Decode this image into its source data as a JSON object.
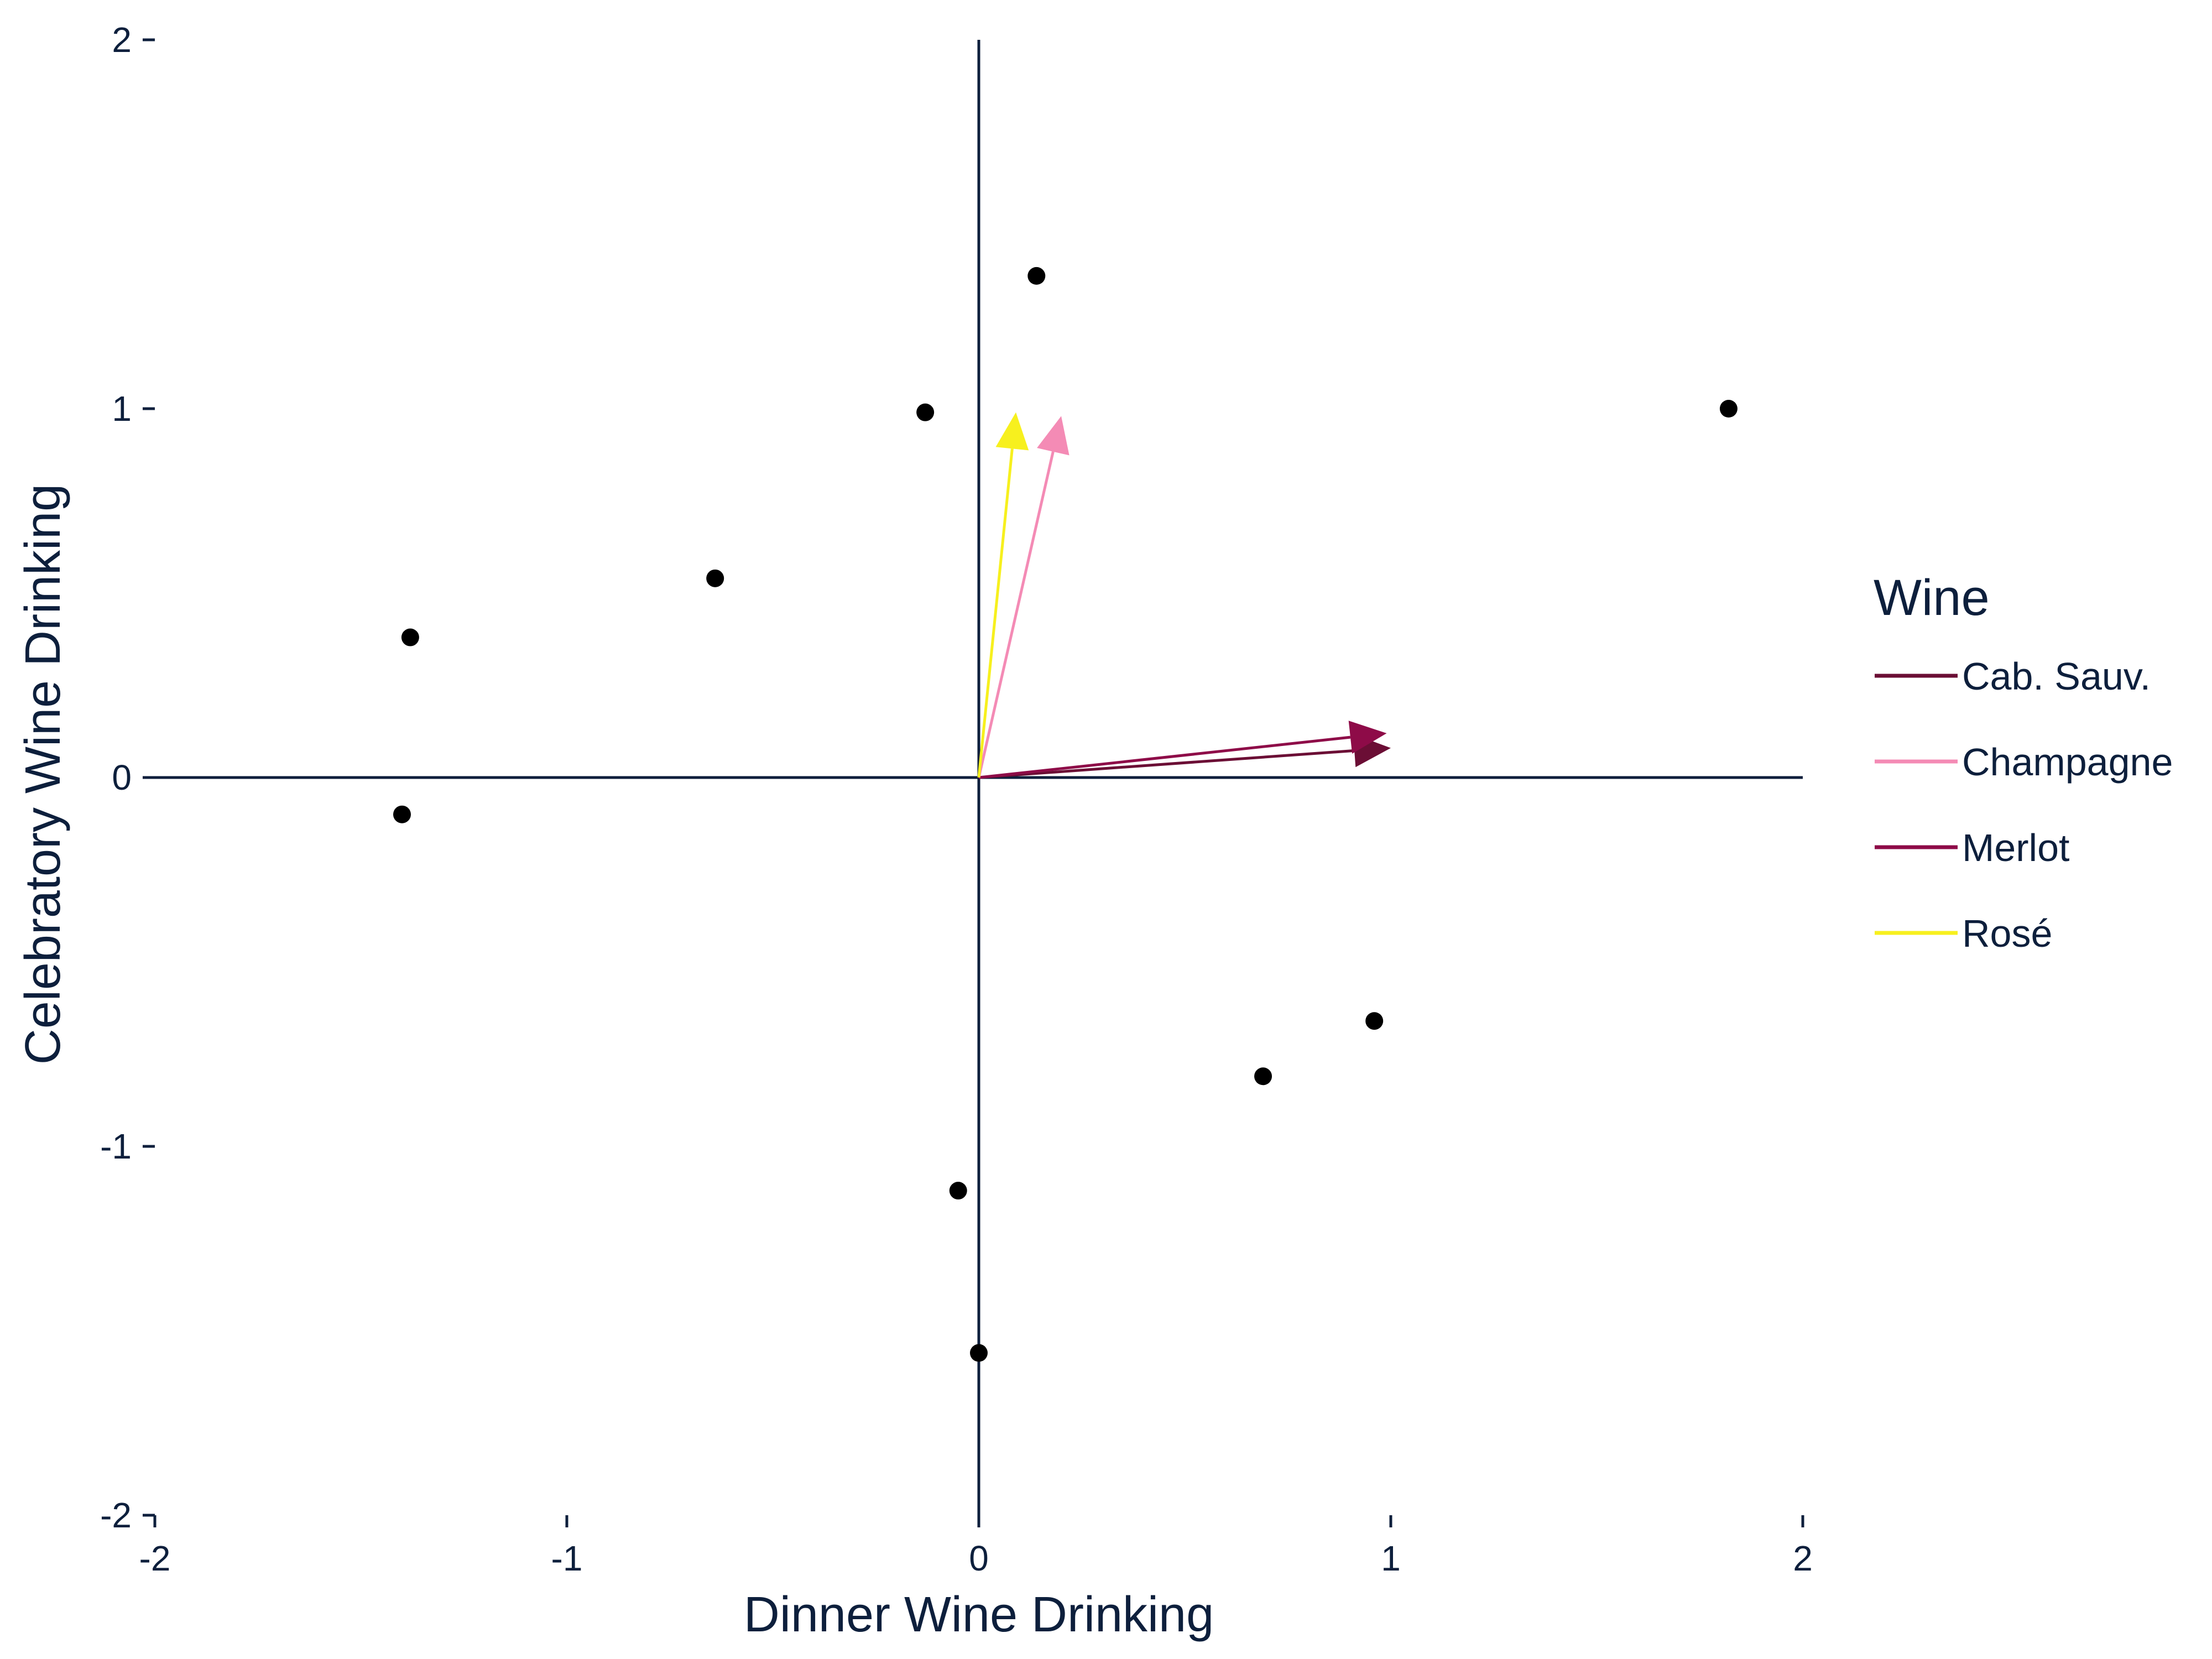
{
  "chart_data": {
    "type": "scatter",
    "xlabel": "Dinner Wine Drinking",
    "ylabel": "Celebratory Wine Drinking",
    "xlim": [
      -2,
      2
    ],
    "ylim": [
      -2,
      2
    ],
    "x_ticks": [
      -2,
      -1,
      0,
      1,
      2
    ],
    "y_ticks": [
      -2,
      -1,
      0,
      1,
      2
    ],
    "x_tick_labels": [
      "-2",
      "-1",
      "0",
      "1",
      "2"
    ],
    "y_tick_labels": [
      "-2",
      "-1",
      "0",
      "1",
      "2"
    ],
    "grid": false,
    "points": [
      {
        "x": 0.14,
        "y": 1.36
      },
      {
        "x": -0.13,
        "y": 0.99
      },
      {
        "x": 1.82,
        "y": 1.0
      },
      {
        "x": -0.64,
        "y": 0.54
      },
      {
        "x": -1.38,
        "y": 0.38
      },
      {
        "x": -1.4,
        "y": -0.1
      },
      {
        "x": 0.96,
        "y": -0.66
      },
      {
        "x": 0.69,
        "y": -0.81
      },
      {
        "x": -0.05,
        "y": -1.12
      },
      {
        "x": 0.0,
        "y": -1.56
      }
    ],
    "legend": {
      "title": "Wine",
      "placement": "right",
      "items": [
        {
          "name": "Cab. Sauv.",
          "color": "#6b0e35"
        },
        {
          "name": "Champagne",
          "color": "#f48bb5"
        },
        {
          "name": "Merlot",
          "color": "#8e0b48"
        },
        {
          "name": "Rosé",
          "color": "#f7f01e"
        }
      ]
    },
    "vectors": [
      {
        "name": "Cab. Sauv.",
        "x": 1.0,
        "y": 0.08,
        "color": "#6b0e35"
      },
      {
        "name": "Merlot",
        "x": 0.99,
        "y": 0.12,
        "color": "#8e0b48"
      },
      {
        "name": "Champagne",
        "x": 0.2,
        "y": 0.98,
        "color": "#f48bb5"
      },
      {
        "name": "Rosé",
        "x": 0.09,
        "y": 0.99,
        "color": "#f7f01e"
      }
    ],
    "point_color": "#000000",
    "axis_color": "#0d1f3c"
  }
}
